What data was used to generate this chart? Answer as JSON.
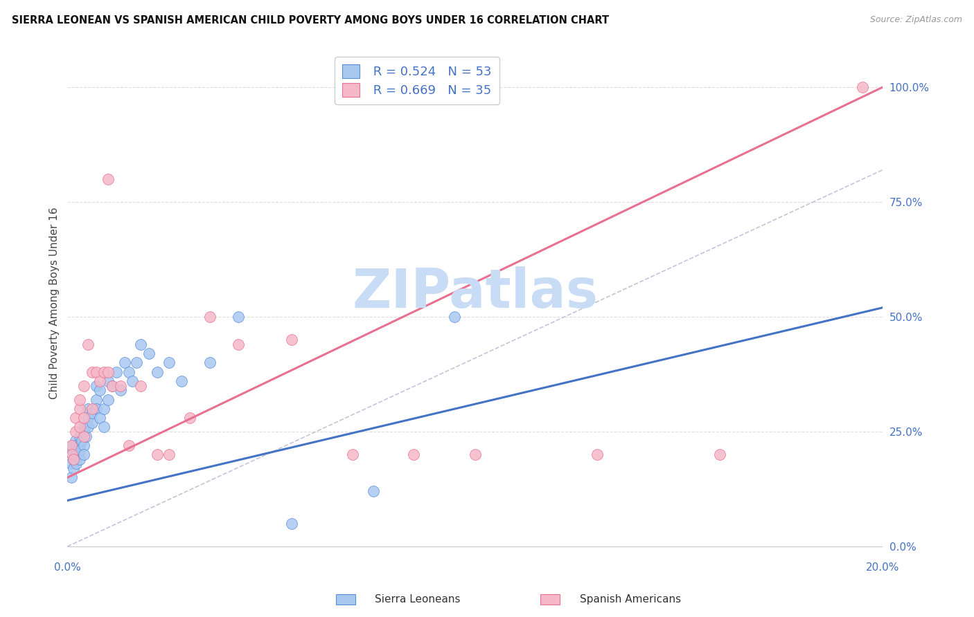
{
  "title": "SIERRA LEONEAN VS SPANISH AMERICAN CHILD POVERTY AMONG BOYS UNDER 16 CORRELATION CHART",
  "source": "Source: ZipAtlas.com",
  "ylabel": "Child Poverty Among Boys Under 16",
  "xlim": [
    0.0,
    0.2
  ],
  "ylim": [
    -0.02,
    1.08
  ],
  "xticks": [
    0.0,
    0.04,
    0.08,
    0.12,
    0.16,
    0.2
  ],
  "xticklabels": [
    "0.0%",
    "",
    "",
    "",
    "",
    "20.0%"
  ],
  "yticks_right": [
    0.0,
    0.25,
    0.5,
    0.75,
    1.0
  ],
  "yticklabels_right": [
    "0.0%",
    "25.0%",
    "50.0%",
    "75.0%",
    "100.0%"
  ],
  "legend_r1": "R = 0.524",
  "legend_n1": "N = 53",
  "legend_r2": "R = 0.669",
  "legend_n2": "N = 35",
  "color_sl_fill": "#A8C8F0",
  "color_sl_edge": "#5B8DD9",
  "color_sa_fill": "#F5B8C8",
  "color_sa_edge": "#E87090",
  "color_line_sl": "#4472C4",
  "color_line_sa": "#E87090",
  "color_ref_line": "#AAAACC",
  "watermark": "ZIPatlas",
  "watermark_color": "#C8DDF5",
  "background_color": "#FFFFFF",
  "grid_color": "#DDDDDD",
  "sl_x": [
    0.0008,
    0.001,
    0.001,
    0.0012,
    0.0013,
    0.0015,
    0.0015,
    0.002,
    0.002,
    0.002,
    0.0022,
    0.0025,
    0.003,
    0.003,
    0.003,
    0.003,
    0.0035,
    0.004,
    0.004,
    0.004,
    0.0042,
    0.0045,
    0.005,
    0.005,
    0.005,
    0.006,
    0.006,
    0.007,
    0.007,
    0.007,
    0.008,
    0.008,
    0.009,
    0.009,
    0.01,
    0.01,
    0.011,
    0.012,
    0.013,
    0.014,
    0.015,
    0.016,
    0.017,
    0.018,
    0.02,
    0.022,
    0.025,
    0.028,
    0.035,
    0.042,
    0.055,
    0.075,
    0.095
  ],
  "sl_y": [
    0.18,
    0.15,
    0.21,
    0.2,
    0.22,
    0.17,
    0.19,
    0.23,
    0.22,
    0.2,
    0.18,
    0.21,
    0.24,
    0.22,
    0.19,
    0.21,
    0.23,
    0.25,
    0.22,
    0.2,
    0.26,
    0.24,
    0.28,
    0.26,
    0.3,
    0.27,
    0.29,
    0.32,
    0.3,
    0.35,
    0.28,
    0.34,
    0.3,
    0.26,
    0.36,
    0.32,
    0.35,
    0.38,
    0.34,
    0.4,
    0.38,
    0.36,
    0.4,
    0.44,
    0.42,
    0.38,
    0.4,
    0.36,
    0.4,
    0.5,
    0.05,
    0.12,
    0.5
  ],
  "sa_x": [
    0.001,
    0.0012,
    0.0015,
    0.002,
    0.002,
    0.003,
    0.003,
    0.003,
    0.004,
    0.004,
    0.004,
    0.005,
    0.006,
    0.006,
    0.007,
    0.008,
    0.009,
    0.01,
    0.01,
    0.011,
    0.013,
    0.015,
    0.018,
    0.022,
    0.025,
    0.03,
    0.035,
    0.042,
    0.055,
    0.07,
    0.085,
    0.1,
    0.13,
    0.16,
    0.195
  ],
  "sa_y": [
    0.22,
    0.2,
    0.19,
    0.25,
    0.28,
    0.3,
    0.26,
    0.32,
    0.28,
    0.24,
    0.35,
    0.44,
    0.38,
    0.3,
    0.38,
    0.36,
    0.38,
    0.38,
    0.8,
    0.35,
    0.35,
    0.22,
    0.35,
    0.2,
    0.2,
    0.28,
    0.5,
    0.44,
    0.45,
    0.2,
    0.2,
    0.2,
    0.2,
    0.2,
    1.0
  ],
  "sl_line_x": [
    0.0,
    0.2
  ],
  "sl_line_y": [
    0.1,
    0.52
  ],
  "sa_line_x": [
    0.0,
    0.2
  ],
  "sa_line_y": [
    0.15,
    1.0
  ],
  "ref_line_x": [
    0.0,
    0.2
  ],
  "ref_line_y": [
    0.0,
    0.82
  ]
}
